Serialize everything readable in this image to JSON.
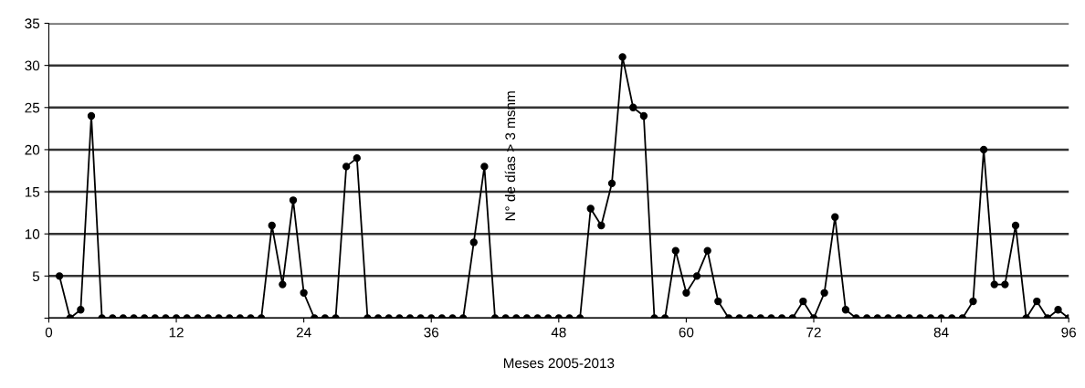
{
  "chart_data": {
    "type": "line",
    "xlabel": "Meses 2005-2013",
    "ylabel": "N° de días > 3 msnm",
    "x": [
      1,
      2,
      3,
      4,
      5,
      6,
      7,
      8,
      9,
      10,
      11,
      12,
      13,
      14,
      15,
      16,
      17,
      18,
      19,
      20,
      21,
      22,
      23,
      24,
      25,
      26,
      27,
      28,
      29,
      30,
      31,
      32,
      33,
      34,
      35,
      36,
      37,
      38,
      39,
      40,
      41,
      42,
      43,
      44,
      45,
      46,
      47,
      48,
      49,
      50,
      51,
      52,
      53,
      54,
      55,
      56,
      57,
      58,
      59,
      60,
      61,
      62,
      63,
      64,
      65,
      66,
      67,
      68,
      69,
      70,
      71,
      72,
      73,
      74,
      75,
      76,
      77,
      78,
      79,
      80,
      81,
      82,
      83,
      84,
      85,
      86,
      87,
      88,
      89,
      90,
      91,
      92,
      93,
      94,
      95,
      96
    ],
    "series": [
      {
        "color": "#000000",
        "values": [
          5,
          0,
          1,
          24,
          0,
          0,
          0,
          0,
          0,
          0,
          0,
          0,
          0,
          0,
          0,
          0,
          0,
          0,
          0,
          0,
          11,
          4,
          14,
          3,
          0,
          0,
          0,
          18,
          19,
          0,
          0,
          0,
          0,
          0,
          0,
          0,
          0,
          0,
          0,
          9,
          18,
          0,
          0,
          0,
          0,
          0,
          0,
          0,
          0,
          0,
          13,
          11,
          16,
          31,
          25,
          24,
          0,
          0,
          8,
          3,
          5,
          8,
          2,
          0,
          0,
          0,
          0,
          0,
          0,
          0,
          2,
          0,
          3,
          12,
          1,
          0,
          0,
          0,
          0,
          0,
          0,
          0,
          0,
          0,
          0,
          0,
          2,
          20,
          4,
          4,
          11,
          0,
          2,
          0,
          1,
          0
        ]
      }
    ],
    "xlim": [
      0,
      96
    ],
    "xticks": [
      0,
      12,
      24,
      36,
      48,
      60,
      72,
      84,
      96
    ],
    "ylim": [
      0,
      35
    ],
    "yticks": [
      {
        "value": 0,
        "label": null
      },
      5,
      10,
      15,
      20,
      25,
      30,
      35
    ],
    "grid": "y",
    "marker": "circle",
    "line_style": "solid"
  }
}
